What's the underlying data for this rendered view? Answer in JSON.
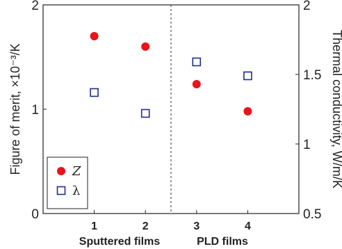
{
  "chart_data": {
    "type": "scatter",
    "x": [
      1,
      2,
      3,
      4
    ],
    "x_tick_labels": [
      "1",
      "2",
      "3",
      "4"
    ],
    "group_labels": [
      "Sputtered films",
      "PLD films"
    ],
    "xlim": [
      0,
      5
    ],
    "ylabel_left": "Figure of merit, ×10⁻³/K",
    "ylabel_right": "Thermal conductivity, W/m/K",
    "ylim_left": [
      0,
      2
    ],
    "ylim_right": [
      0.5,
      2
    ],
    "yticks_left": [
      "0",
      "1",
      "2"
    ],
    "yticks_right": [
      "0.5",
      "1",
      "1.5",
      "2"
    ],
    "series": [
      {
        "name": "Z",
        "axis": "left",
        "marker": "filled-circle",
        "color": "#e8141a",
        "values": [
          1.7,
          1.6,
          1.24,
          0.98
        ]
      },
      {
        "name": "λ",
        "axis": "right",
        "marker": "open-square",
        "color": "#1f2b8f",
        "values": [
          1.37,
          1.22,
          1.59,
          1.49
        ]
      }
    ],
    "divider_x": 2.5,
    "legend_position": "bottom-left",
    "grid": false
  }
}
